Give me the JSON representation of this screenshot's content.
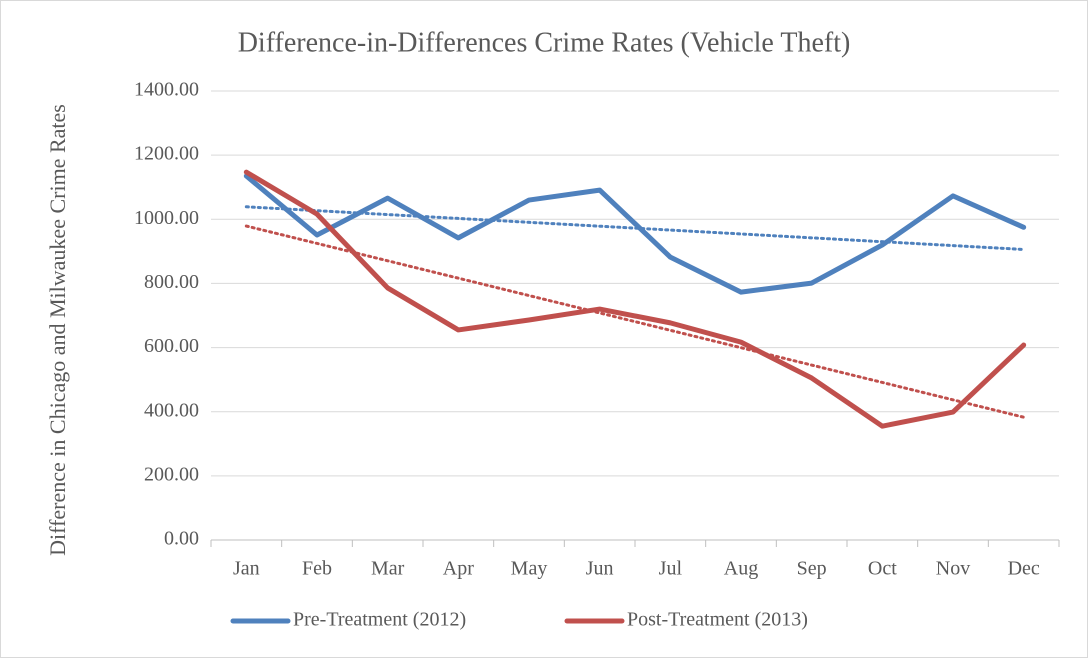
{
  "chart_data": {
    "type": "line",
    "title": "Difference-in-Differences Crime Rates (Vehicle Theft)",
    "y_label": "Difference in Chicago and Milwaukee Crime Rates",
    "categories": [
      "Jan",
      "Feb",
      "Mar",
      "Apr",
      "May",
      "Jun",
      "Jul",
      "Aug",
      "Sep",
      "Oct",
      "Nov",
      "Dec"
    ],
    "series": [
      {
        "name": "Pre-Treatment (2012)",
        "color": "#4f81bd",
        "values": [
          1135,
          951,
          1066,
          942,
          1060,
          1091,
          882,
          773,
          801,
          920,
          1073,
          975
        ]
      },
      {
        "name": "Post-Treatment (2013)",
        "color": "#c0504d",
        "values": [
          1147,
          1016,
          786,
          655,
          686,
          720,
          677,
          617,
          505,
          355,
          399,
          608
        ]
      }
    ],
    "ylim": [
      0,
      1400
    ],
    "yticks": [
      {
        "value": 0,
        "label": "0.00"
      },
      {
        "value": 200,
        "label": "200.00"
      },
      {
        "value": 400,
        "label": "400.00"
      },
      {
        "value": 600,
        "label": "600.00"
      },
      {
        "value": 800,
        "label": "800.00"
      },
      {
        "value": 1000,
        "label": "1000.00"
      },
      {
        "value": 1200,
        "label": "1200.00"
      },
      {
        "value": 1400,
        "label": "1400.00"
      }
    ],
    "grid": true,
    "trendline": "linear",
    "legend": "bottom"
  }
}
